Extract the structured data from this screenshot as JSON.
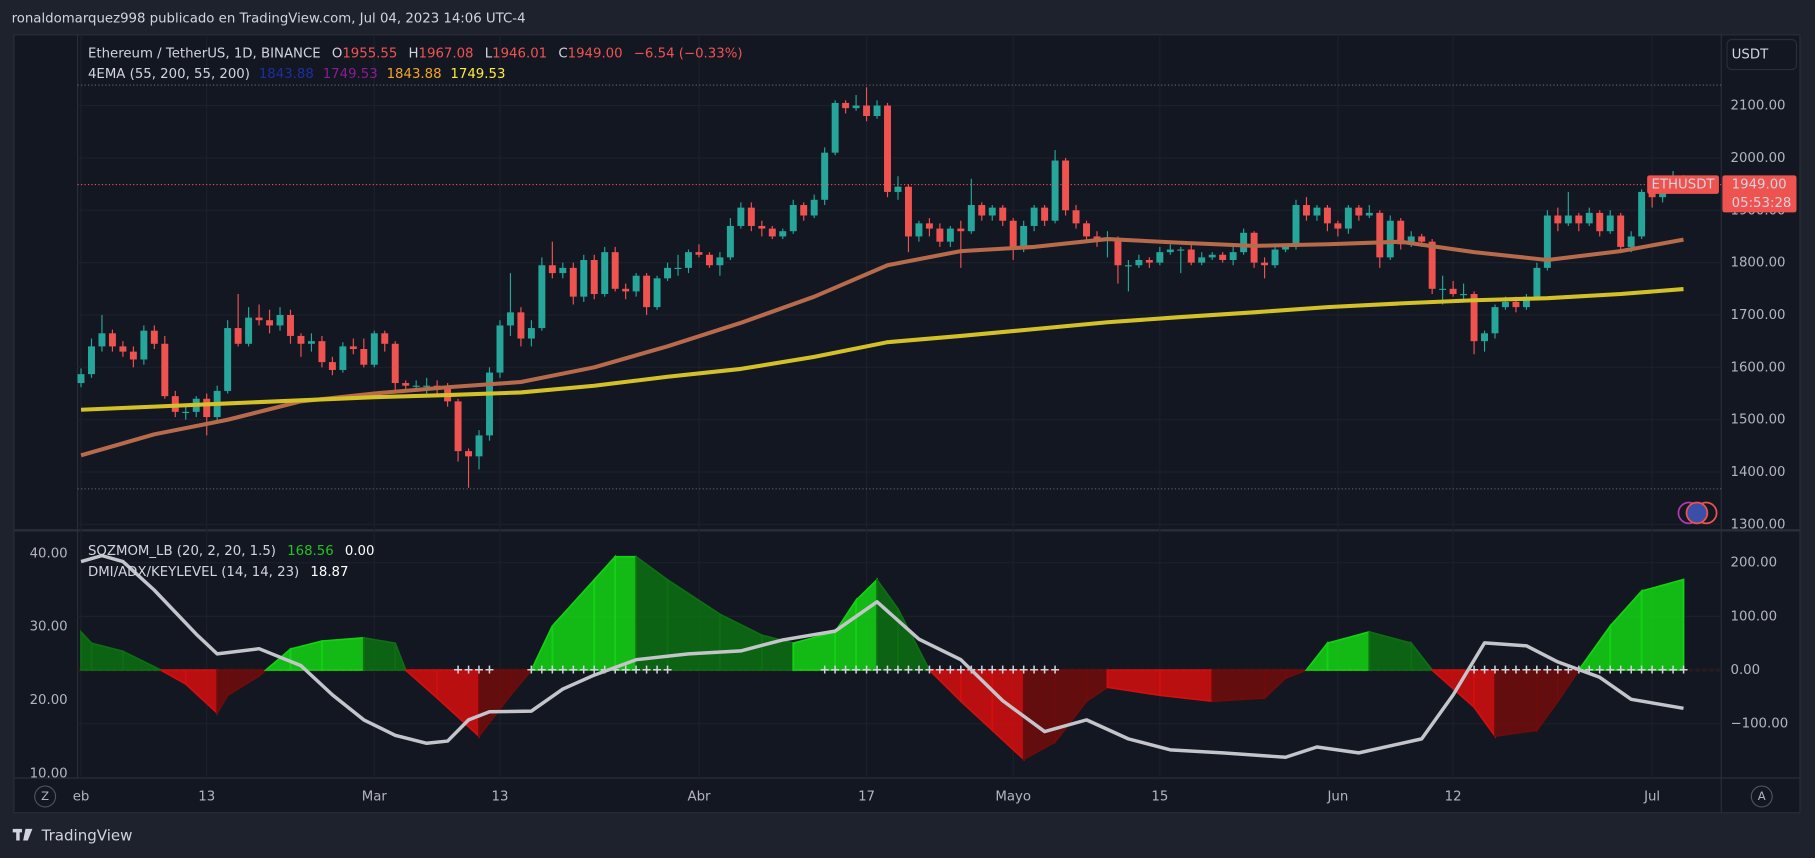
{
  "page": {
    "author_line": "ronaldomarquez998 publicado en TradingView.com, Jul 04, 2023 14:06 UTC-4",
    "brand": "TradingView",
    "left_button": "Z",
    "right_button": "A",
    "currency": "USDT"
  },
  "chart_data": {
    "type": "candlestick",
    "symbol": "Ethereum / TetherUS, 1D, BINANCE",
    "ohlc_legend": [
      {
        "label": "O",
        "value": "1955.55"
      },
      {
        "label": "H",
        "value": "1967.08"
      },
      {
        "label": "L",
        "value": "1946.01"
      },
      {
        "label": "C",
        "value": "1949.00"
      }
    ],
    "change": "−6.54 (−0.33%)",
    "price_tag": {
      "symbol": "ETHUSDT",
      "price": "1949.00",
      "countdown": "05:53:28"
    },
    "up_color": "#26a69a",
    "down_color": "#ef5350",
    "candles": [
      [
        1570,
        1598,
        1562,
        1587
      ],
      [
        1587,
        1655,
        1580,
        1640
      ],
      [
        1640,
        1700,
        1630,
        1665
      ],
      [
        1665,
        1672,
        1630,
        1640
      ],
      [
        1640,
        1650,
        1620,
        1630
      ],
      [
        1630,
        1640,
        1600,
        1615
      ],
      [
        1615,
        1680,
        1605,
        1670
      ],
      [
        1670,
        1680,
        1635,
        1645
      ],
      [
        1645,
        1660,
        1540,
        1545
      ],
      [
        1545,
        1555,
        1505,
        1515
      ],
      [
        1515,
        1525,
        1500,
        1515
      ],
      [
        1515,
        1545,
        1505,
        1540
      ],
      [
        1540,
        1550,
        1470,
        1505
      ],
      [
        1505,
        1565,
        1495,
        1555
      ],
      [
        1555,
        1690,
        1550,
        1675
      ],
      [
        1675,
        1740,
        1640,
        1645
      ],
      [
        1645,
        1715,
        1640,
        1695
      ],
      [
        1695,
        1720,
        1680,
        1690
      ],
      [
        1690,
        1710,
        1665,
        1680
      ],
      [
        1680,
        1715,
        1670,
        1700
      ],
      [
        1700,
        1710,
        1645,
        1660
      ],
      [
        1660,
        1665,
        1620,
        1645
      ],
      [
        1645,
        1665,
        1630,
        1650
      ],
      [
        1650,
        1660,
        1600,
        1610
      ],
      [
        1610,
        1620,
        1585,
        1595
      ],
      [
        1595,
        1648,
        1590,
        1640
      ],
      [
        1640,
        1655,
        1625,
        1635
      ],
      [
        1635,
        1655,
        1600,
        1605
      ],
      [
        1605,
        1670,
        1600,
        1665
      ],
      [
        1665,
        1670,
        1630,
        1645
      ],
      [
        1645,
        1650,
        1555,
        1570
      ],
      [
        1570,
        1575,
        1555,
        1565
      ],
      [
        1565,
        1575,
        1555,
        1565
      ],
      [
        1565,
        1580,
        1550,
        1565
      ],
      [
        1565,
        1575,
        1550,
        1560
      ],
      [
        1560,
        1570,
        1525,
        1535
      ],
      [
        1535,
        1540,
        1420,
        1440
      ],
      [
        1440,
        1445,
        1370,
        1430
      ],
      [
        1430,
        1480,
        1405,
        1470
      ],
      [
        1470,
        1600,
        1460,
        1590
      ],
      [
        1590,
        1690,
        1580,
        1680
      ],
      [
        1680,
        1780,
        1660,
        1705
      ],
      [
        1705,
        1715,
        1640,
        1655
      ],
      [
        1655,
        1690,
        1640,
        1675
      ],
      [
        1675,
        1810,
        1670,
        1795
      ],
      [
        1795,
        1840,
        1770,
        1780
      ],
      [
        1780,
        1800,
        1770,
        1790
      ],
      [
        1790,
        1800,
        1720,
        1735
      ],
      [
        1735,
        1815,
        1725,
        1805
      ],
      [
        1805,
        1815,
        1730,
        1740
      ],
      [
        1740,
        1830,
        1735,
        1820
      ],
      [
        1820,
        1830,
        1745,
        1750
      ],
      [
        1750,
        1760,
        1730,
        1745
      ],
      [
        1745,
        1780,
        1735,
        1775
      ],
      [
        1775,
        1780,
        1700,
        1715
      ],
      [
        1715,
        1775,
        1710,
        1770
      ],
      [
        1770,
        1800,
        1765,
        1790
      ],
      [
        1790,
        1815,
        1775,
        1790
      ],
      [
        1790,
        1825,
        1780,
        1820
      ],
      [
        1820,
        1835,
        1810,
        1815
      ],
      [
        1815,
        1820,
        1790,
        1795
      ],
      [
        1795,
        1820,
        1775,
        1810
      ],
      [
        1810,
        1885,
        1805,
        1870
      ],
      [
        1870,
        1915,
        1865,
        1905
      ],
      [
        1905,
        1915,
        1860,
        1870
      ],
      [
        1870,
        1880,
        1850,
        1865
      ],
      [
        1865,
        1870,
        1845,
        1850
      ],
      [
        1850,
        1865,
        1845,
        1860
      ],
      [
        1860,
        1920,
        1855,
        1910
      ],
      [
        1910,
        1915,
        1880,
        1890
      ],
      [
        1890,
        1930,
        1885,
        1920
      ],
      [
        1920,
        2020,
        1910,
        2010
      ],
      [
        2010,
        2110,
        2005,
        2105
      ],
      [
        2105,
        2110,
        2085,
        2095
      ],
      [
        2095,
        2120,
        2090,
        2100
      ],
      [
        2100,
        2135,
        2070,
        2080
      ],
      [
        2080,
        2110,
        2075,
        2100
      ],
      [
        2100,
        2105,
        1925,
        1935
      ],
      [
        1935,
        1965,
        1920,
        1945
      ],
      [
        1945,
        1950,
        1820,
        1850
      ],
      [
        1850,
        1880,
        1840,
        1875
      ],
      [
        1875,
        1885,
        1850,
        1865
      ],
      [
        1865,
        1875,
        1830,
        1840
      ],
      [
        1840,
        1870,
        1830,
        1865
      ],
      [
        1865,
        1880,
        1790,
        1860
      ],
      [
        1860,
        1960,
        1855,
        1910
      ],
      [
        1910,
        1915,
        1880,
        1890
      ],
      [
        1890,
        1910,
        1880,
        1905
      ],
      [
        1905,
        1910,
        1870,
        1880
      ],
      [
        1880,
        1885,
        1805,
        1830
      ],
      [
        1830,
        1880,
        1820,
        1870
      ],
      [
        1870,
        1910,
        1860,
        1905
      ],
      [
        1905,
        1910,
        1870,
        1880
      ],
      [
        1880,
        2015,
        1875,
        1995
      ],
      [
        1995,
        2000,
        1890,
        1900
      ],
      [
        1900,
        1910,
        1865,
        1875
      ],
      [
        1875,
        1880,
        1840,
        1850
      ],
      [
        1850,
        1860,
        1830,
        1845
      ],
      [
        1845,
        1860,
        1810,
        1845
      ],
      [
        1845,
        1850,
        1760,
        1795
      ],
      [
        1795,
        1805,
        1745,
        1795
      ],
      [
        1795,
        1815,
        1790,
        1805
      ],
      [
        1805,
        1810,
        1790,
        1800
      ],
      [
        1800,
        1830,
        1795,
        1820
      ],
      [
        1820,
        1835,
        1815,
        1825
      ],
      [
        1825,
        1830,
        1780,
        1825
      ],
      [
        1825,
        1835,
        1795,
        1800
      ],
      [
        1800,
        1820,
        1795,
        1810
      ],
      [
        1810,
        1820,
        1805,
        1815
      ],
      [
        1815,
        1820,
        1800,
        1805
      ],
      [
        1805,
        1830,
        1795,
        1820
      ],
      [
        1820,
        1865,
        1815,
        1857
      ],
      [
        1857,
        1860,
        1790,
        1800
      ],
      [
        1800,
        1810,
        1770,
        1795
      ],
      [
        1795,
        1830,
        1790,
        1825
      ],
      [
        1825,
        1835,
        1820,
        1830
      ],
      [
        1830,
        1920,
        1825,
        1910
      ],
      [
        1910,
        1925,
        1880,
        1890
      ],
      [
        1890,
        1910,
        1880,
        1905
      ],
      [
        1905,
        1910,
        1860,
        1875
      ],
      [
        1875,
        1880,
        1850,
        1865
      ],
      [
        1865,
        1910,
        1855,
        1905
      ],
      [
        1905,
        1910,
        1880,
        1890
      ],
      [
        1890,
        1910,
        1885,
        1895
      ],
      [
        1895,
        1900,
        1790,
        1810
      ],
      [
        1810,
        1890,
        1805,
        1880
      ],
      [
        1880,
        1885,
        1825,
        1835
      ],
      [
        1835,
        1860,
        1830,
        1850
      ],
      [
        1850,
        1855,
        1830,
        1840
      ],
      [
        1840,
        1845,
        1740,
        1750
      ],
      [
        1750,
        1775,
        1720,
        1750
      ],
      [
        1750,
        1765,
        1735,
        1740
      ],
      [
        1740,
        1760,
        1730,
        1740
      ],
      [
        1740,
        1745,
        1625,
        1650
      ],
      [
        1650,
        1670,
        1630,
        1665
      ],
      [
        1665,
        1720,
        1655,
        1715
      ],
      [
        1715,
        1735,
        1710,
        1725
      ],
      [
        1725,
        1735,
        1705,
        1715
      ],
      [
        1715,
        1740,
        1710,
        1735
      ],
      [
        1735,
        1800,
        1730,
        1790
      ],
      [
        1790,
        1900,
        1785,
        1890
      ],
      [
        1890,
        1905,
        1860,
        1875
      ],
      [
        1875,
        1935,
        1870,
        1890
      ],
      [
        1890,
        1895,
        1860,
        1875
      ],
      [
        1875,
        1905,
        1870,
        1895
      ],
      [
        1895,
        1900,
        1850,
        1860
      ],
      [
        1860,
        1900,
        1855,
        1890
      ],
      [
        1890,
        1895,
        1820,
        1830
      ],
      [
        1830,
        1860,
        1820,
        1850
      ],
      [
        1850,
        1940,
        1845,
        1935
      ],
      [
        1935,
        1940,
        1905,
        1925
      ],
      [
        1925,
        1950,
        1915,
        1940
      ],
      [
        1940,
        1975,
        1935,
        1955.55
      ],
      [
        1955.55,
        1967.08,
        1946.01,
        1949
      ]
    ],
    "xlim": [
      -0.33,
      156.6
    ],
    "xticks": [
      {
        "value": 0,
        "label": "eb"
      },
      {
        "value": 12,
        "label": "13"
      },
      {
        "value": 28,
        "label": "Mar"
      },
      {
        "value": 40,
        "label": "13"
      },
      {
        "value": 59,
        "label": "Abr"
      },
      {
        "value": 75,
        "label": "17"
      },
      {
        "value": 89,
        "label": "Mayo"
      },
      {
        "value": 103,
        "label": "15"
      },
      {
        "value": 120,
        "label": "Jun"
      },
      {
        "value": 131,
        "label": "12"
      },
      {
        "value": 150,
        "label": "Jul"
      }
    ],
    "ylim": [
      1291,
      2235
    ],
    "yticks": [
      {
        "value": 1300,
        "label": "1300.00"
      },
      {
        "value": 1400,
        "label": "1400.00"
      },
      {
        "value": 1500,
        "label": "1500.00"
      },
      {
        "value": 1600,
        "label": "1600.00"
      },
      {
        "value": 1700,
        "label": "1700.00"
      },
      {
        "value": 1800,
        "label": "1800.00"
      },
      {
        "value": 1900,
        "label": "1900.00"
      },
      {
        "value": 2000,
        "label": "2000.00"
      },
      {
        "value": 2100,
        "label": "2100.00"
      }
    ],
    "grid": true,
    "level_lines": [
      2139,
      1368
    ],
    "overlay_legend": {
      "label": "4EMA (55, 200, 55, 200)",
      "colors": [
        "#1c2fa0",
        "#8e1a96",
        "#f5a623",
        "#ffeb3b"
      ]
    },
    "overlays": [
      {
        "color": "#b86b4b",
        "x": [
          0,
          7,
          14,
          21,
          28,
          35,
          42,
          49,
          56,
          63,
          70,
          77,
          84,
          91,
          98,
          105,
          112,
          119,
          126,
          133,
          140,
          147,
          153
        ],
        "values": [
          1432,
          1472,
          1500,
          1535,
          1550,
          1562,
          1572,
          1600,
          1640,
          1685,
          1735,
          1795,
          1822,
          1830,
          1845,
          1838,
          1832,
          1835,
          1840,
          1820,
          1805,
          1822,
          1843.88
        ]
      },
      {
        "color": "#d4c127",
        "x": [
          0,
          7,
          14,
          21,
          28,
          35,
          42,
          49,
          56,
          63,
          70,
          77,
          84,
          91,
          98,
          105,
          112,
          119,
          126,
          133,
          140,
          147,
          153
        ],
        "values": [
          1519,
          1525,
          1531,
          1537,
          1543,
          1547,
          1552,
          1565,
          1582,
          1597,
          1620,
          1648,
          1660,
          1673,
          1686,
          1696,
          1705,
          1715,
          1722,
          1728,
          1732,
          1740,
          1749.53
        ]
      }
    ],
    "lower_pane": {
      "ylim": [
        9.37,
        42.84
      ],
      "yticks": [
        {
          "value": 10,
          "label": "10.00"
        },
        {
          "value": 20,
          "label": "20.00"
        },
        {
          "value": 30,
          "label": "30.00"
        },
        {
          "value": 40,
          "label": "40.00"
        }
      ],
      "y2lim": [
        -201,
        256
      ],
      "y2ticks": [
        {
          "value": -100,
          "label": "−100.00"
        },
        {
          "value": 0,
          "label": "0.00"
        },
        {
          "value": 100,
          "label": "100.00"
        },
        {
          "value": 200,
          "label": "200.00"
        }
      ],
      "momentum": {
        "label": "SQZMOM_LB (20, 2, 20, 1.5)",
        "extra_value": "0.00",
        "axis": "y2",
        "legend_color": "#22c322",
        "colors": {
          "up_rising": "#13d113",
          "up_falling": "#0d6e12",
          "down_falling": "#d10f0f",
          "down_rising": "#6e0c0c"
        },
        "x": [
          0,
          1,
          4,
          7,
          8,
          10,
          13,
          14,
          17,
          20,
          23,
          27,
          30,
          31,
          34,
          38,
          41,
          43,
          45,
          49,
          51,
          53,
          56,
          61,
          65,
          68,
          72,
          74,
          76,
          78,
          81,
          84,
          87,
          90,
          93,
          96,
          98,
          103,
          108,
          113,
          115,
          117,
          119,
          123,
          127,
          129,
          133,
          135,
          139,
          141,
          143,
          146,
          149,
          153
        ],
        "values": [
          71,
          50,
          35,
          6,
          -4,
          -26,
          -80,
          -47,
          -11,
          39,
          54,
          60,
          50,
          0,
          -52,
          -123,
          -47,
          0,
          82,
          168,
          211,
          211,
          168,
          104,
          65,
          50,
          71,
          130,
          168,
          114,
          0,
          -58,
          -112,
          -166,
          -134,
          -58,
          -32,
          -47,
          -58,
          -52,
          -15,
          0,
          50,
          71,
          50,
          0,
          -69,
          -123,
          -112,
          -58,
          0,
          82,
          147,
          168.56
        ],
        "squeeze_off": [
          [
            36,
            39
          ],
          [
            43,
            56
          ],
          [
            71,
            93
          ],
          [
            133,
            153
          ]
        ]
      },
      "dmi": {
        "label": "DMI/ADX/KEYLEVEL (14, 14, 23)",
        "axis": "y",
        "color": "#c3c5ca",
        "x": [
          0,
          2,
          4,
          7,
          11,
          13,
          17,
          21,
          24,
          27,
          30,
          33,
          35,
          37,
          39,
          43,
          46,
          49,
          53,
          58,
          63,
          67,
          72,
          76,
          80,
          84,
          88,
          92,
          96,
          100,
          104,
          109,
          115,
          118,
          122,
          128,
          131,
          134,
          138,
          141,
          145,
          148,
          153
        ],
        "values": [
          38.9,
          39.7,
          38.9,
          35,
          29,
          26.3,
          27,
          24.7,
          20.7,
          17.3,
          15.2,
          14.1,
          14.4,
          17.3,
          18.4,
          18.5,
          21.5,
          23.4,
          25.5,
          26.3,
          26.7,
          28.2,
          29.4,
          33.4,
          28.3,
          25.5,
          19.9,
          15.7,
          17.3,
          14.7,
          13.2,
          12.8,
          12.2,
          13.6,
          12.8,
          14.7,
          20.7,
          27.8,
          27.4,
          25.2,
          23.1,
          20.1,
          18.87
        ]
      }
    }
  }
}
